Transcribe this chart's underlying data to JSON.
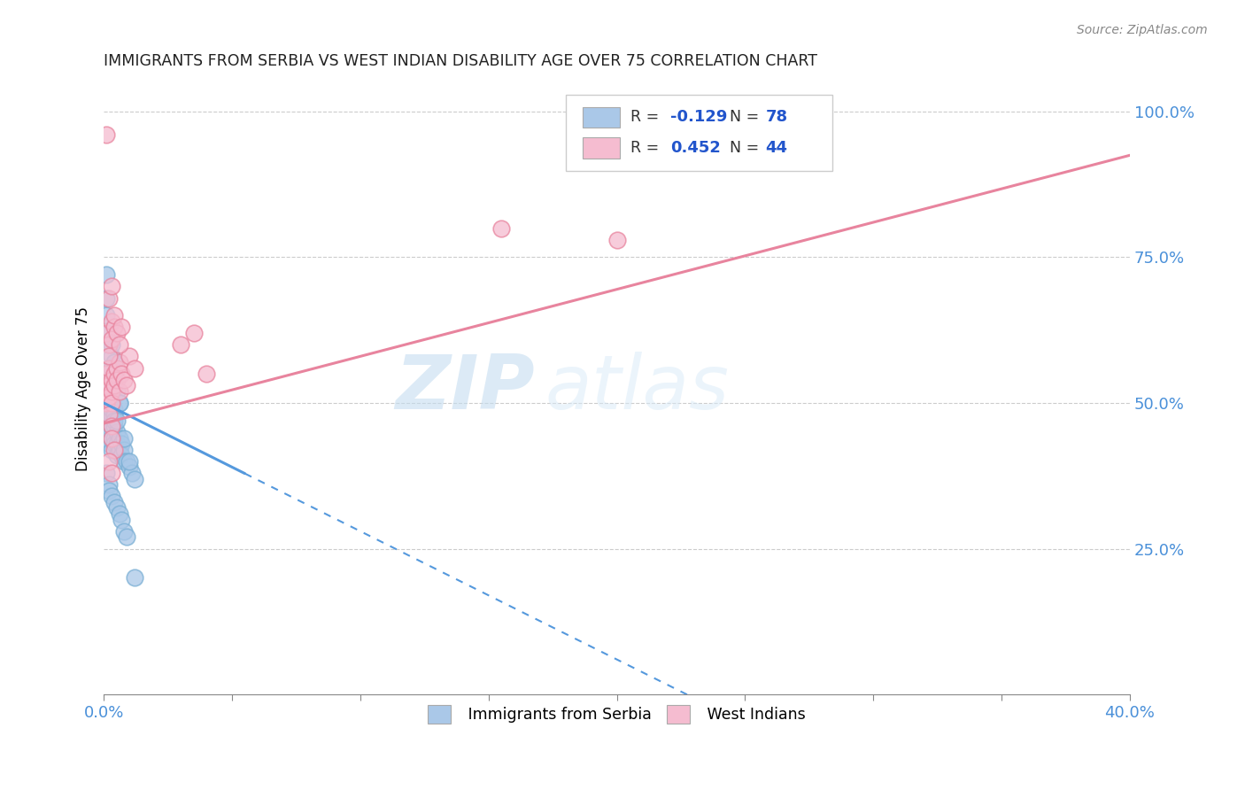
{
  "title": "IMMIGRANTS FROM SERBIA VS WEST INDIAN DISABILITY AGE OVER 75 CORRELATION CHART",
  "source": "Source: ZipAtlas.com",
  "ylabel": "Disability Age Over 75",
  "right_yticks": [
    0.25,
    0.5,
    0.75,
    1.0
  ],
  "right_yticklabels": [
    "25.0%",
    "50.0%",
    "75.0%",
    "100.0%"
  ],
  "serbia_color": "#aac8e8",
  "serbia_edge": "#7aafd4",
  "westindian_color": "#f5bcd0",
  "westindian_edge": "#e8849e",
  "trendline_serbia_color": "#5599dd",
  "trendline_westindian_color": "#e8849e",
  "watermark_zip": "ZIP",
  "watermark_atlas": "atlas",
  "xmin": 0.0,
  "xmax": 0.4,
  "ymin": 0.0,
  "ymax": 1.05,
  "serbia_x": [
    0.001,
    0.001,
    0.001,
    0.001,
    0.001,
    0.001,
    0.001,
    0.001,
    0.001,
    0.001,
    0.002,
    0.002,
    0.002,
    0.002,
    0.002,
    0.002,
    0.002,
    0.002,
    0.002,
    0.002,
    0.002,
    0.002,
    0.003,
    0.003,
    0.003,
    0.003,
    0.003,
    0.003,
    0.003,
    0.003,
    0.004,
    0.004,
    0.004,
    0.004,
    0.004,
    0.004,
    0.005,
    0.005,
    0.005,
    0.005,
    0.006,
    0.006,
    0.007,
    0.007,
    0.008,
    0.008,
    0.009,
    0.01,
    0.011,
    0.012,
    0.001,
    0.001,
    0.002,
    0.002,
    0.003,
    0.003,
    0.004,
    0.004,
    0.005,
    0.006,
    0.001,
    0.002,
    0.002,
    0.003,
    0.004,
    0.005,
    0.006,
    0.007,
    0.008,
    0.009,
    0.001,
    0.002,
    0.003,
    0.004,
    0.006,
    0.008,
    0.01,
    0.012
  ],
  "serbia_y": [
    0.52,
    0.5,
    0.48,
    0.46,
    0.44,
    0.5,
    0.54,
    0.49,
    0.47,
    0.53,
    0.52,
    0.5,
    0.48,
    0.46,
    0.51,
    0.49,
    0.47,
    0.53,
    0.45,
    0.54,
    0.56,
    0.43,
    0.5,
    0.48,
    0.46,
    0.52,
    0.44,
    0.49,
    0.42,
    0.51,
    0.49,
    0.46,
    0.44,
    0.48,
    0.43,
    0.47,
    0.45,
    0.43,
    0.47,
    0.41,
    0.44,
    0.42,
    0.43,
    0.41,
    0.42,
    0.4,
    0.4,
    0.39,
    0.38,
    0.37,
    0.65,
    0.68,
    0.6,
    0.55,
    0.58,
    0.56,
    0.53,
    0.57,
    0.52,
    0.5,
    0.38,
    0.36,
    0.35,
    0.34,
    0.33,
    0.32,
    0.31,
    0.3,
    0.28,
    0.27,
    0.72,
    0.62,
    0.6,
    0.55,
    0.5,
    0.44,
    0.4,
    0.2
  ],
  "westindian_x": [
    0.001,
    0.001,
    0.001,
    0.002,
    0.002,
    0.002,
    0.003,
    0.003,
    0.003,
    0.004,
    0.004,
    0.005,
    0.005,
    0.006,
    0.006,
    0.007,
    0.008,
    0.009,
    0.01,
    0.012,
    0.001,
    0.002,
    0.003,
    0.004,
    0.002,
    0.003,
    0.004,
    0.005,
    0.006,
    0.007,
    0.002,
    0.003,
    0.03,
    0.035,
    0.04,
    0.155,
    0.2,
    0.001,
    0.002,
    0.003,
    0.003,
    0.004,
    0.002,
    0.003
  ],
  "westindian_y": [
    0.55,
    0.52,
    0.5,
    0.53,
    0.51,
    0.56,
    0.54,
    0.52,
    0.5,
    0.55,
    0.53,
    0.56,
    0.54,
    0.52,
    0.57,
    0.55,
    0.54,
    0.53,
    0.58,
    0.56,
    0.62,
    0.6,
    0.64,
    0.63,
    0.58,
    0.61,
    0.65,
    0.62,
    0.6,
    0.63,
    0.68,
    0.7,
    0.6,
    0.62,
    0.55,
    0.8,
    0.78,
    0.96,
    0.48,
    0.46,
    0.44,
    0.42,
    0.4,
    0.38
  ],
  "trend_serbia_x0": 0.0,
  "trend_serbia_y0": 0.5,
  "trend_serbia_slope": -2.2,
  "trend_serbia_solid_end": 0.055,
  "trend_west_x0": 0.0,
  "trend_west_y0": 0.465,
  "trend_west_slope": 1.15
}
